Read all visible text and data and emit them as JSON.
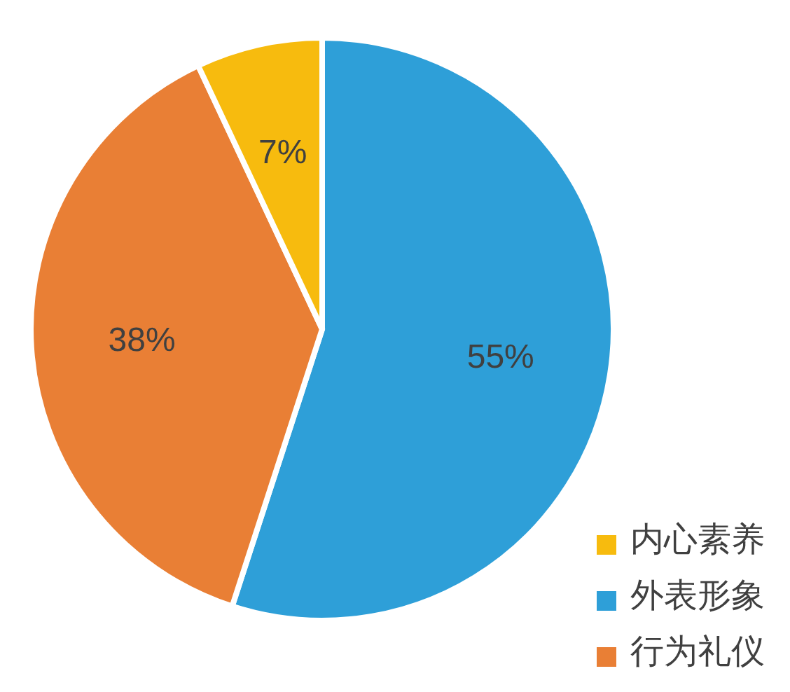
{
  "chart_data": {
    "type": "pie",
    "categories": [
      "外表形象",
      "行为礼仪",
      "内心素养"
    ],
    "values": [
      55,
      38,
      7
    ],
    "colors": [
      "#2e9fd8",
      "#e97f35",
      "#f7bb0e"
    ],
    "value_labels": [
      "55%",
      "38%",
      "7%"
    ],
    "legend": "bottom right"
  }
}
